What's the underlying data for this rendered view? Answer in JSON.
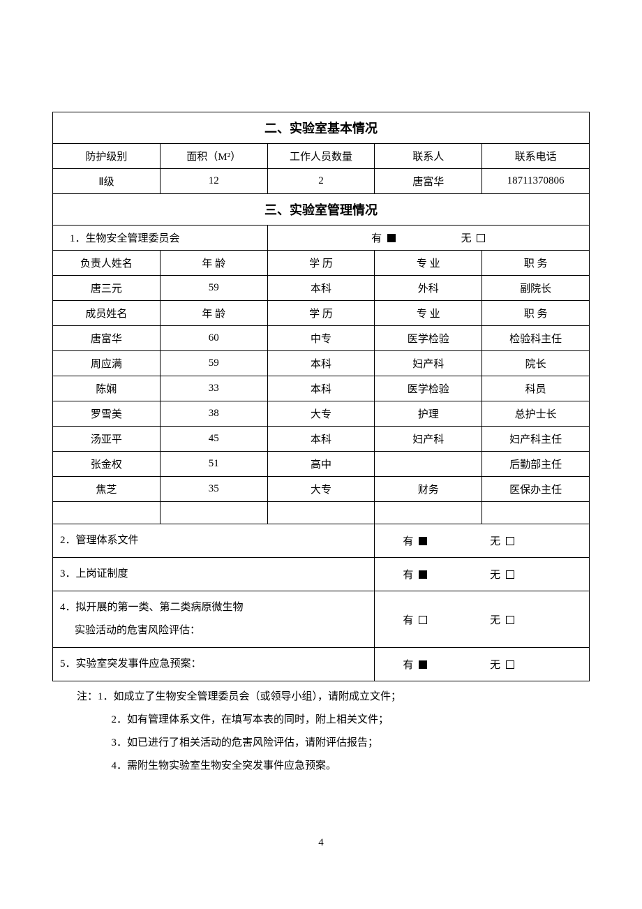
{
  "section2": {
    "title": "二、实验室基本情况",
    "headers": [
      "防护级别",
      "面积（M²）",
      "工作人员数量",
      "联系人",
      "联系电话"
    ],
    "values": [
      "Ⅱ级",
      "12",
      "2",
      "唐富华",
      "18711370806"
    ]
  },
  "section3": {
    "title": "三、实验室管理情况",
    "committee": {
      "label": "1．生物安全管理委员会",
      "yes_label": "有",
      "no_label": "无",
      "has": true
    },
    "leader_headers": [
      "负责人姓名",
      "年 龄",
      "学 历",
      "专 业",
      "职 务"
    ],
    "leader": [
      "唐三元",
      "59",
      "本科",
      "外科",
      "副院长"
    ],
    "member_headers": [
      "成员姓名",
      "年 龄",
      "学 历",
      "专 业",
      "职 务"
    ],
    "members": [
      [
        "唐富华",
        "60",
        "中专",
        "医学检验",
        "检验科主任"
      ],
      [
        "周应满",
        "59",
        "本科",
        "妇产科",
        "院长"
      ],
      [
        "陈娴",
        "33",
        "本科",
        "医学检验",
        "科员"
      ],
      [
        "罗雪美",
        "38",
        "大专",
        "护理",
        "总护士长"
      ],
      [
        "汤亚平",
        "45",
        "本科",
        "妇产科",
        "妇产科主任"
      ],
      [
        "张金权",
        "51",
        "高中",
        "",
        "后勤部主任"
      ],
      [
        "焦芝",
        "35",
        "大专",
        "财务",
        "医保办主任"
      ]
    ],
    "items": [
      {
        "label": "2．管理体系文件",
        "yes_label": "有",
        "no_label": "无",
        "has": true
      },
      {
        "label": "3．上岗证制度",
        "yes_label": "有",
        "no_label": "无",
        "has": true
      },
      {
        "label": "4．拟开展的第一类、第二类病原微生物",
        "label2": "实验活动的危害风险评估：",
        "yes_label": "有",
        "no_label": "无",
        "has": null
      },
      {
        "label": "5．实验室突发事件应急预案：",
        "yes_label": "有",
        "no_label": "无",
        "has": true
      }
    ]
  },
  "notes": {
    "prefix": "注：",
    "lines": [
      "1．如成立了生物安全管理委员会（或领导小组），请附成立文件；",
      "2．如有管理体系文件，在填写本表的同时，附上相关文件；",
      "3．如已进行了相关活动的危害风险评估，请附评估报告；",
      "4．需附生物实验室生物安全突发事件应急预案。"
    ]
  },
  "page_number": "4",
  "colors": {
    "text": "#000000",
    "background": "#ffffff",
    "border": "#000000"
  }
}
